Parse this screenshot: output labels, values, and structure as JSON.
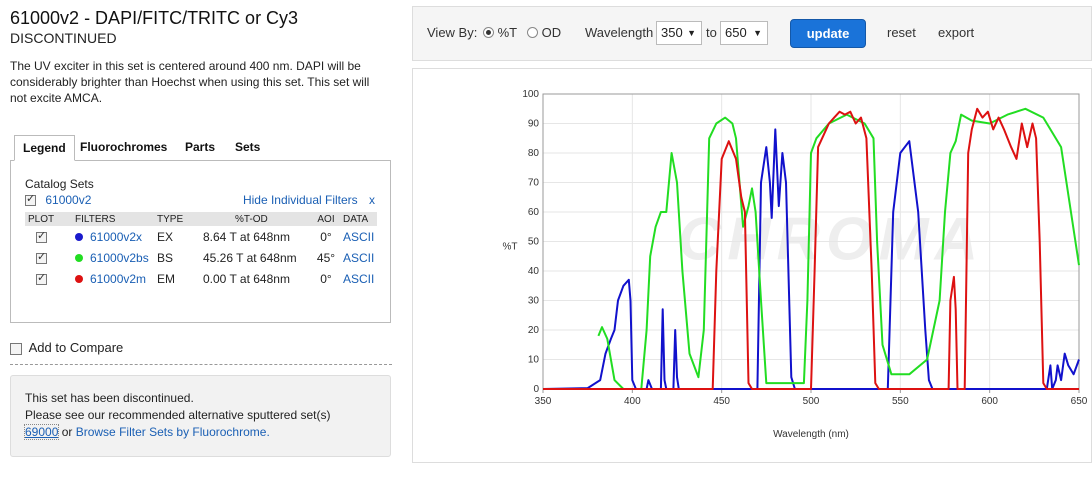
{
  "product": {
    "title": "61000v2 - DAPI/FITC/TRITC or Cy3",
    "status": "DISCONTINUED",
    "description": "The UV exciter in this set is centered around 400 nm. DAPI will be considerably brighter than Hoechst when using this set. This set will not excite AMCA."
  },
  "tabs": [
    "Legend",
    "Fluorochromes",
    "Parts",
    "Sets"
  ],
  "legend": {
    "catalog_label": "Catalog Sets",
    "catalog_set": "61000v2",
    "hide_link": "Hide Individual Filters",
    "hide_x": "x",
    "headers": [
      "PLOT",
      "FILTERS",
      "TYPE",
      "%T-OD",
      "AOI",
      "DATA"
    ],
    "rows": [
      {
        "color": "#1a1acc",
        "filter": "61000v2x",
        "type": "EX",
        "tod": "8.64 T at 648nm",
        "aoi": "0°",
        "data": "ASCII"
      },
      {
        "color": "#22dd22",
        "filter": "61000v2bs",
        "type": "BS",
        "tod": "45.26 T at 648nm",
        "aoi": "45°",
        "data": "ASCII"
      },
      {
        "color": "#dd1111",
        "filter": "61000v2m",
        "type": "EM",
        "tod": "0.00 T at 648nm",
        "aoi": "0°",
        "data": "ASCII"
      }
    ]
  },
  "compare_label": "Add to Compare",
  "notice": {
    "line1": "This set has been discontinued.",
    "line2": "Please see our recommended alternative sputtered set(s)",
    "alt_set": "69000",
    "or": " or ",
    "browse": "Browse Filter Sets by Fluorochrome."
  },
  "toolbar": {
    "view_by": "View By:",
    "opt_t": "%T",
    "opt_od": "OD",
    "wavelength": "Wavelength",
    "from": "350",
    "to_label": "to",
    "to": "650",
    "update": "update",
    "reset": "reset",
    "export": "export"
  },
  "chart_data": {
    "type": "line",
    "xlabel": "Wavelength (nm)",
    "ylabel": "%T",
    "xlim": [
      350,
      650
    ],
    "ylim": [
      0,
      100
    ],
    "xticks": [
      350,
      400,
      450,
      500,
      550,
      600,
      650
    ],
    "yticks": [
      0,
      10,
      20,
      30,
      40,
      50,
      60,
      70,
      80,
      90,
      100
    ],
    "watermark": "CHROMA",
    "series": [
      {
        "name": "61000v2x",
        "color": "#1111cc",
        "points": [
          [
            350,
            0
          ],
          [
            375,
            0.3
          ],
          [
            382,
            3
          ],
          [
            385,
            12
          ],
          [
            388,
            17
          ],
          [
            390,
            20
          ],
          [
            392,
            30
          ],
          [
            395,
            35
          ],
          [
            398,
            37
          ],
          [
            399,
            30
          ],
          [
            400,
            3
          ],
          [
            402,
            0
          ],
          [
            408,
            0
          ],
          [
            409,
            3
          ],
          [
            411,
            0
          ],
          [
            416,
            0
          ],
          [
            417,
            27
          ],
          [
            418,
            3
          ],
          [
            419,
            0
          ],
          [
            423,
            0
          ],
          [
            424,
            20
          ],
          [
            425,
            4
          ],
          [
            426,
            0
          ],
          [
            470,
            0
          ],
          [
            472,
            70
          ],
          [
            475,
            82
          ],
          [
            477,
            70
          ],
          [
            478,
            58
          ],
          [
            480,
            88
          ],
          [
            482,
            62
          ],
          [
            484,
            80
          ],
          [
            486,
            70
          ],
          [
            489,
            4
          ],
          [
            491,
            0
          ],
          [
            543,
            0
          ],
          [
            546,
            60
          ],
          [
            550,
            80
          ],
          [
            555,
            84
          ],
          [
            560,
            60
          ],
          [
            564,
            20
          ],
          [
            566,
            3
          ],
          [
            568,
            0
          ],
          [
            632,
            0
          ],
          [
            634,
            8
          ],
          [
            635,
            0
          ],
          [
            637,
            3
          ],
          [
            638,
            8
          ],
          [
            640,
            3
          ],
          [
            642,
            12
          ],
          [
            644,
            8
          ],
          [
            647,
            5
          ],
          [
            650,
            10
          ]
        ]
      },
      {
        "name": "61000v2bs",
        "color": "#22dd22",
        "points": [
          [
            381,
            18
          ],
          [
            383,
            21
          ],
          [
            386,
            17
          ],
          [
            390,
            3
          ],
          [
            395,
            0
          ],
          [
            405,
            0
          ],
          [
            408,
            20
          ],
          [
            410,
            45
          ],
          [
            413,
            55
          ],
          [
            416,
            60
          ],
          [
            419,
            60
          ],
          [
            422,
            80
          ],
          [
            425,
            70
          ],
          [
            428,
            40
          ],
          [
            432,
            12
          ],
          [
            437,
            4
          ],
          [
            440,
            20
          ],
          [
            443,
            85
          ],
          [
            447,
            90
          ],
          [
            452,
            92
          ],
          [
            456,
            90
          ],
          [
            458,
            85
          ],
          [
            460,
            70
          ],
          [
            462,
            55
          ],
          [
            465,
            62
          ],
          [
            467,
            68
          ],
          [
            469,
            60
          ],
          [
            472,
            30
          ],
          [
            475,
            2
          ],
          [
            496,
            2
          ],
          [
            498,
            30
          ],
          [
            500,
            80
          ],
          [
            503,
            85
          ],
          [
            510,
            90
          ],
          [
            520,
            93
          ],
          [
            530,
            90
          ],
          [
            535,
            85
          ],
          [
            537,
            50
          ],
          [
            540,
            15
          ],
          [
            545,
            5
          ],
          [
            555,
            5
          ],
          [
            565,
            10
          ],
          [
            572,
            30
          ],
          [
            575,
            60
          ],
          [
            578,
            80
          ],
          [
            581,
            84
          ],
          [
            584,
            93
          ],
          [
            590,
            91
          ],
          [
            600,
            90
          ],
          [
            610,
            93
          ],
          [
            620,
            95
          ],
          [
            630,
            92
          ],
          [
            640,
            82
          ],
          [
            650,
            42
          ]
        ]
      },
      {
        "name": "61000v2m",
        "color": "#dd1111",
        "points": [
          [
            350,
            0
          ],
          [
            445,
            0
          ],
          [
            447,
            40
          ],
          [
            450,
            78
          ],
          [
            454,
            84
          ],
          [
            458,
            78
          ],
          [
            461,
            65
          ],
          [
            463,
            60
          ],
          [
            465,
            2
          ],
          [
            467,
            0
          ],
          [
            500,
            0
          ],
          [
            502,
            40
          ],
          [
            504,
            82
          ],
          [
            507,
            86
          ],
          [
            510,
            90
          ],
          [
            513,
            92
          ],
          [
            516,
            94
          ],
          [
            519,
            93
          ],
          [
            522,
            94
          ],
          [
            525,
            90
          ],
          [
            528,
            92
          ],
          [
            531,
            85
          ],
          [
            534,
            40
          ],
          [
            536,
            2
          ],
          [
            538,
            0
          ],
          [
            577,
            0
          ],
          [
            578,
            30
          ],
          [
            580,
            38
          ],
          [
            581,
            27
          ],
          [
            582,
            0
          ],
          [
            586,
            0
          ],
          [
            588,
            80
          ],
          [
            590,
            88
          ],
          [
            593,
            95
          ],
          [
            596,
            92
          ],
          [
            599,
            94
          ],
          [
            602,
            88
          ],
          [
            605,
            92
          ],
          [
            608,
            88
          ],
          [
            612,
            82
          ],
          [
            615,
            78
          ],
          [
            618,
            90
          ],
          [
            621,
            82
          ],
          [
            624,
            90
          ],
          [
            626,
            85
          ],
          [
            628,
            50
          ],
          [
            630,
            2
          ],
          [
            632,
            0
          ],
          [
            650,
            0
          ]
        ]
      }
    ]
  }
}
